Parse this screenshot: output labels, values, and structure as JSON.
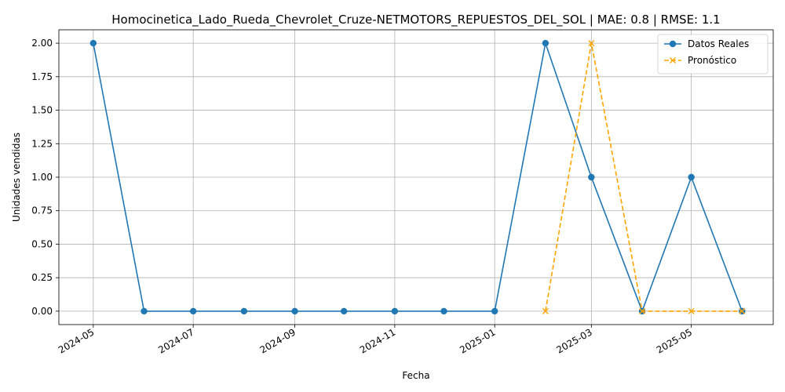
{
  "chart_data": {
    "type": "line",
    "title": "Homocinetica_Lado_Rueda_Chevrolet_Cruze-NETMOTORS_REPUESTOS_DEL_SOL | MAE: 0.8 | RMSE: 1.1",
    "xlabel": "Fecha",
    "ylabel": "Unidades vendidas",
    "ylim": [
      -0.1,
      2.1
    ],
    "xlim": [
      "2024-04-10",
      "2025-06-20"
    ],
    "grid": true,
    "legend_position": "top-right",
    "x_ticks": [
      "2024-05",
      "2024-07",
      "2024-09",
      "2024-11",
      "2025-01",
      "2025-03",
      "2025-05"
    ],
    "y_ticks": [
      "0.00",
      "0.25",
      "0.50",
      "0.75",
      "1.00",
      "1.25",
      "1.50",
      "1.75",
      "2.00"
    ],
    "series": [
      {
        "name": "Datos Reales",
        "color": "#1f77b4",
        "style": "solid",
        "marker": "circle",
        "x": [
          "2024-05-01",
          "2024-06-01",
          "2024-07-01",
          "2024-08-01",
          "2024-09-01",
          "2024-10-01",
          "2024-11-01",
          "2024-12-01",
          "2025-01-01",
          "2025-02-01",
          "2025-03-01",
          "2025-04-01",
          "2025-05-01",
          "2025-06-01"
        ],
        "values": [
          2,
          0,
          0,
          0,
          0,
          0,
          0,
          0,
          0,
          2,
          1,
          0,
          1,
          0
        ]
      },
      {
        "name": "Pronóstico",
        "color": "#ffa500",
        "style": "dashed",
        "marker": "x",
        "x": [
          "2025-02-01",
          "2025-03-01",
          "2025-04-01",
          "2025-05-01",
          "2025-06-01"
        ],
        "values": [
          0,
          2,
          0,
          0,
          0
        ]
      }
    ]
  }
}
